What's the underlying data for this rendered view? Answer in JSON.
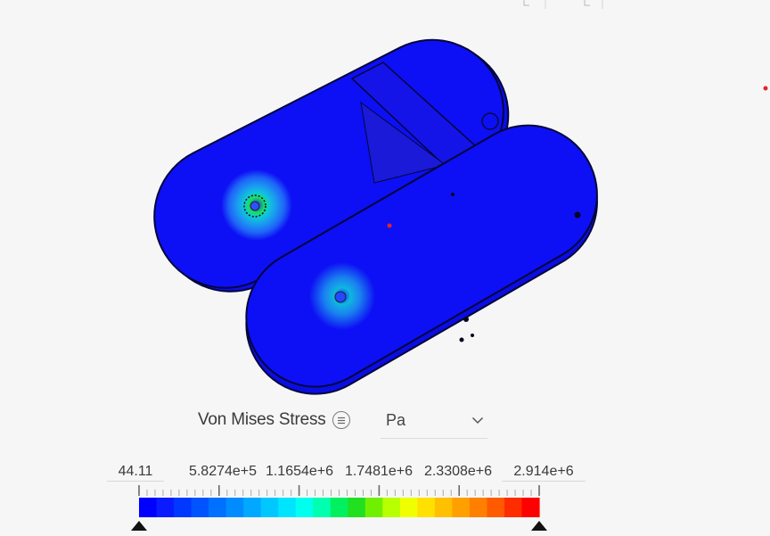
{
  "result": {
    "label": "Von Mises Stress",
    "menu_icon": "list-menu-icon",
    "unit": "Pa",
    "unit_dropdown_icon": "chevron-down-icon"
  },
  "legend": {
    "min_value": "44.11",
    "max_value": "2.914e+6",
    "tick_labels": [
      "5.8274e+5",
      "1.1654e+6",
      "1.7481e+6",
      "2.3308e+6"
    ],
    "colors": [
      "#0000ff",
      "#0a1cff",
      "#0038ff",
      "#0054ff",
      "#0070ff",
      "#008cff",
      "#00a8ff",
      "#00c8ff",
      "#00e4ff",
      "#00ffee",
      "#00ffb0",
      "#00f060",
      "#20e020",
      "#70f000",
      "#b8ff00",
      "#f0ff00",
      "#ffe000",
      "#ffc000",
      "#ffa000",
      "#ff8000",
      "#ff5a00",
      "#ff2c00",
      "#ff0000"
    ],
    "min_handle_icon": "triangle-up-icon",
    "max_handle_icon": "triangle-up-icon"
  },
  "model": {
    "body_color": "#0d10f4",
    "outline_color": "#05063a",
    "probe_color": "#e0242c"
  }
}
